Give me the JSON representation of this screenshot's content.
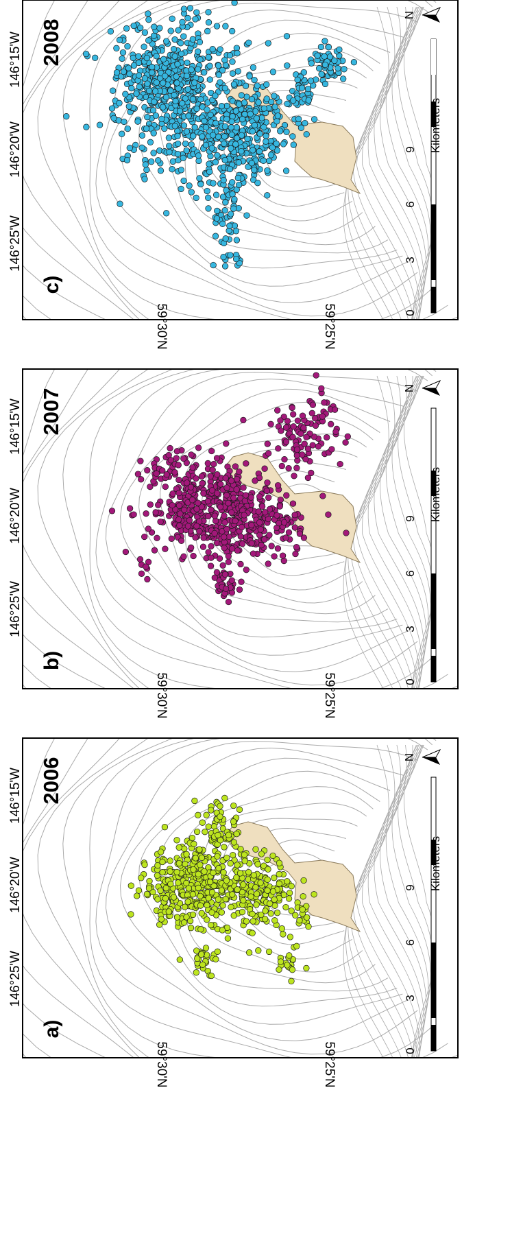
{
  "figure": {
    "longitude_labels": [
      "146°25'W",
      "146°20'W",
      "146°15'W"
    ],
    "latitude_labels": [
      "59°30'N",
      "59°25'N"
    ],
    "scale_bar": {
      "ticks": [
        "0",
        "3",
        "6",
        "9"
      ],
      "unit": "Kilometers"
    },
    "north_label": "N",
    "colors": {
      "land": "#efdfbf",
      "contour": "#a9a9a9",
      "frame": "#000000"
    }
  },
  "panels": [
    {
      "label": "a)",
      "year": "2006",
      "point_color": "#bde51f"
    },
    {
      "label": "b)",
      "year": "2007",
      "point_color": "#a3187a"
    },
    {
      "label": "c)",
      "year": "2008",
      "point_color": "#36b7e0"
    }
  ]
}
